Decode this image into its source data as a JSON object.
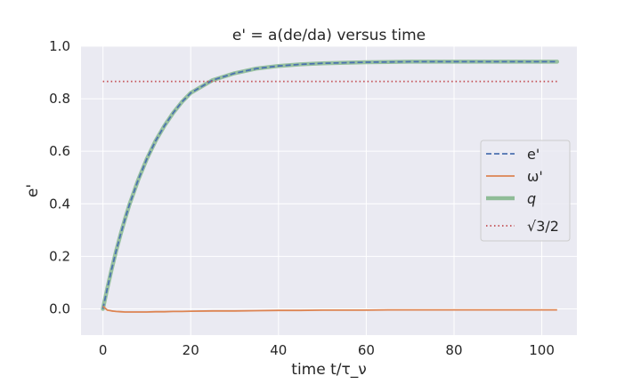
{
  "chart_data": {
    "type": "line",
    "title": "e' = a(de/da) versus time",
    "xlabel": "time t/τ_ν",
    "ylabel": "e'",
    "xlim": [
      -5,
      108
    ],
    "ylim": [
      -0.1,
      1.0
    ],
    "xticks": [
      0,
      20,
      40,
      60,
      80,
      100
    ],
    "yticks": [
      0.0,
      0.2,
      0.4,
      0.6,
      0.8,
      1.0
    ],
    "grid": true,
    "legend_position": "center-right",
    "series": [
      {
        "name": "e'",
        "style": "dashed",
        "color": "#4c72b0",
        "x": [
          0,
          1,
          2,
          3,
          4,
          5,
          6,
          8,
          10,
          12,
          14,
          16,
          18,
          20,
          25,
          30,
          35,
          40,
          45,
          50,
          55,
          60,
          65,
          70,
          80,
          90,
          100,
          103.5
        ],
        "y": [
          0.0,
          0.079,
          0.152,
          0.22,
          0.283,
          0.341,
          0.395,
          0.49,
          0.571,
          0.64,
          0.697,
          0.746,
          0.788,
          0.822,
          0.871,
          0.897,
          0.915,
          0.925,
          0.931,
          0.935,
          0.937,
          0.939,
          0.94,
          0.941,
          0.941,
          0.941,
          0.941,
          0.941
        ]
      },
      {
        "name": "ω'",
        "style": "solid",
        "color": "#dd8452",
        "x": [
          0,
          1,
          2,
          3,
          4,
          5,
          6,
          8,
          10,
          12,
          14,
          16,
          18,
          20,
          25,
          30,
          35,
          40,
          45,
          50,
          55,
          60,
          65,
          70,
          80,
          90,
          100,
          103.5
        ],
        "y": [
          0.01,
          -0.005,
          -0.008,
          -0.01,
          -0.011,
          -0.012,
          -0.012,
          -0.012,
          -0.012,
          -0.011,
          -0.011,
          -0.01,
          -0.01,
          -0.009,
          -0.008,
          -0.008,
          -0.007,
          -0.006,
          -0.006,
          -0.005,
          -0.005,
          -0.005,
          -0.004,
          -0.004,
          -0.004,
          -0.004,
          -0.004,
          -0.004
        ]
      },
      {
        "name": "q",
        "style": "thick",
        "color": "#8fbc97",
        "x": [
          0,
          1,
          2,
          3,
          4,
          5,
          6,
          8,
          10,
          12,
          14,
          16,
          18,
          20,
          25,
          30,
          35,
          40,
          45,
          50,
          55,
          60,
          65,
          70,
          80,
          90,
          100,
          103.5
        ],
        "y": [
          0.0,
          0.079,
          0.152,
          0.22,
          0.283,
          0.341,
          0.395,
          0.49,
          0.571,
          0.64,
          0.697,
          0.746,
          0.788,
          0.822,
          0.871,
          0.897,
          0.915,
          0.925,
          0.931,
          0.935,
          0.937,
          0.939,
          0.94,
          0.941,
          0.941,
          0.941,
          0.941,
          0.941
        ]
      },
      {
        "name": "√3/2",
        "style": "dotted",
        "color": "#c44e52",
        "x": [
          0,
          103.5
        ],
        "y": [
          0.866,
          0.866
        ]
      }
    ]
  }
}
